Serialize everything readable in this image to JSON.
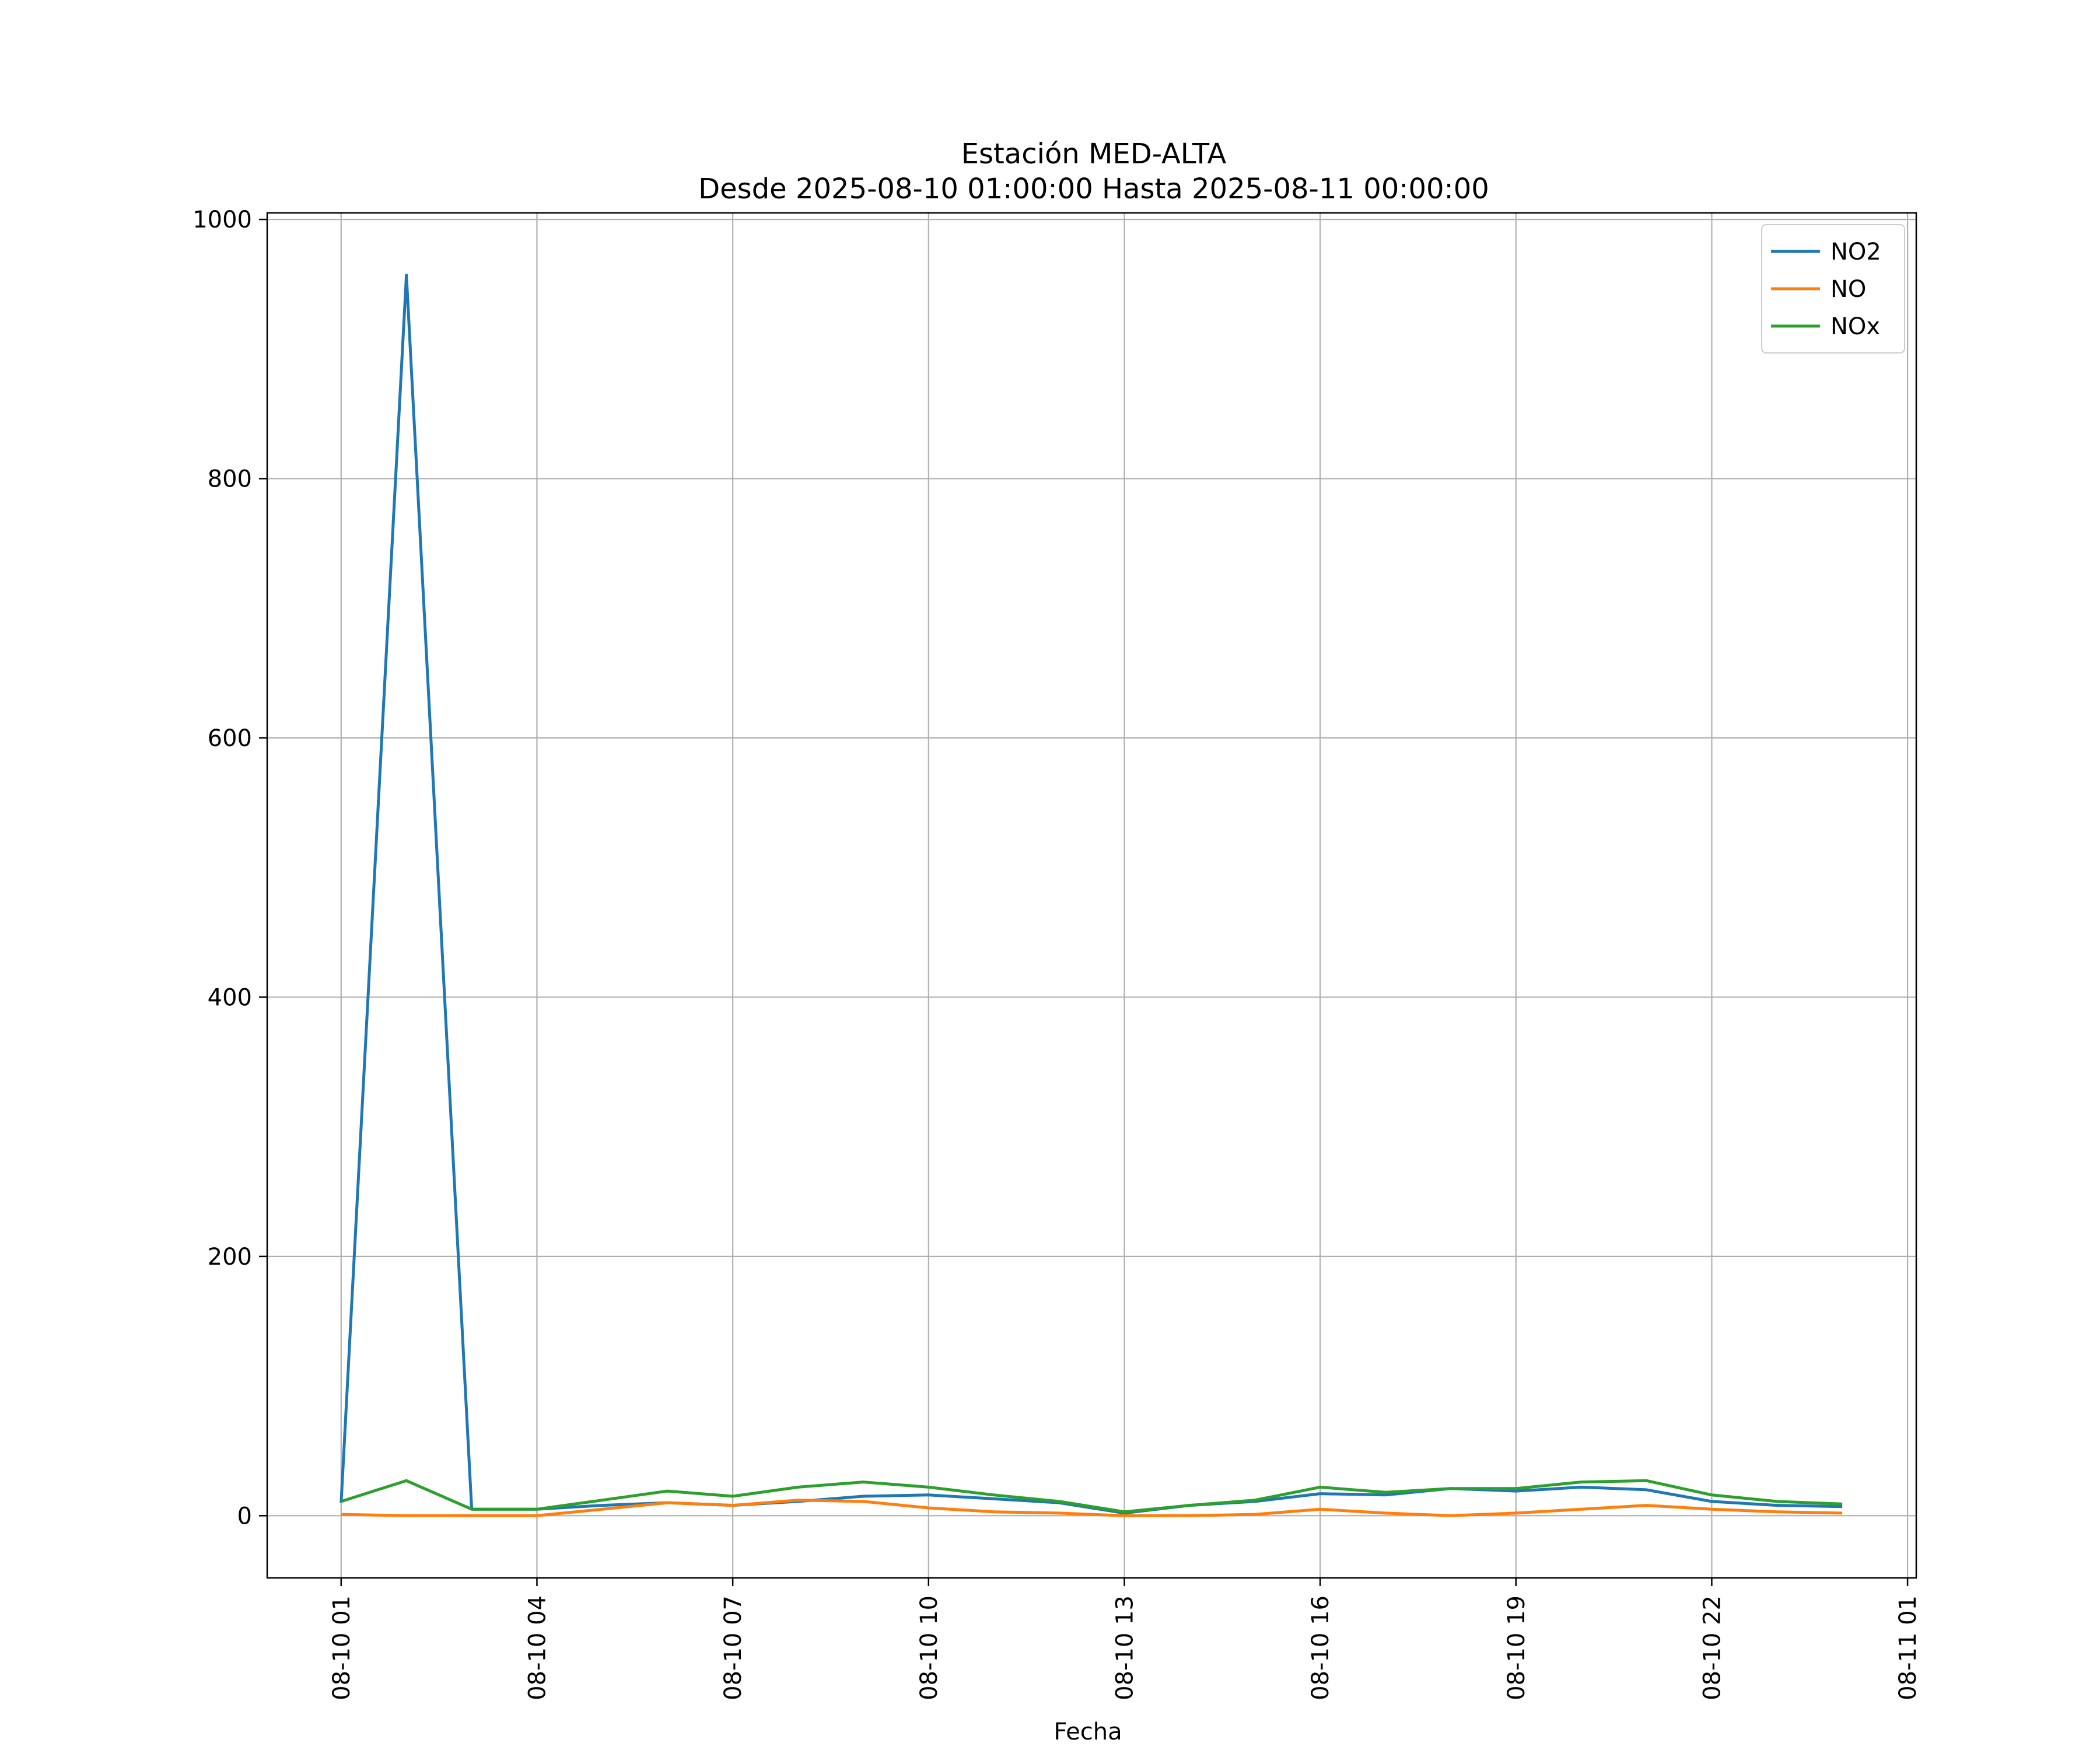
{
  "chart_data": {
    "type": "line",
    "title": "Estación MED-ALTA",
    "subtitle": "Desde 2025-08-10 01:00:00 Hasta 2025-08-11 00:00:00",
    "xlabel": "Fecha",
    "ylabel": "",
    "x_axis_type": "datetime",
    "xlim": [
      "2025-08-09 23:52",
      "2025-08-11 01:08"
    ],
    "ylim": [
      -48,
      1005
    ],
    "grid": true,
    "legend_position": "top-right",
    "x_tick_labels": [
      "08-10 01",
      "08-10 04",
      "08-10 07",
      "08-10 10",
      "08-10 13",
      "08-10 16",
      "08-10 19",
      "08-10 22",
      "08-11 01"
    ],
    "x_tick_values": [
      "2025-08-10 01:00",
      "2025-08-10 04:00",
      "2025-08-10 07:00",
      "2025-08-10 10:00",
      "2025-08-10 13:00",
      "2025-08-10 16:00",
      "2025-08-10 19:00",
      "2025-08-10 22:00",
      "2025-08-11 01:00"
    ],
    "y_ticks": [
      0,
      200,
      400,
      600,
      800,
      1000
    ],
    "x": [
      "2025-08-10 01:00",
      "2025-08-10 02:00",
      "2025-08-10 03:00",
      "2025-08-10 04:00",
      "2025-08-10 05:00",
      "2025-08-10 06:00",
      "2025-08-10 07:00",
      "2025-08-10 08:00",
      "2025-08-10 09:00",
      "2025-08-10 10:00",
      "2025-08-10 11:00",
      "2025-08-10 12:00",
      "2025-08-10 13:00",
      "2025-08-10 14:00",
      "2025-08-10 15:00",
      "2025-08-10 16:00",
      "2025-08-10 17:00",
      "2025-08-10 18:00",
      "2025-08-10 19:00",
      "2025-08-10 20:00",
      "2025-08-10 21:00",
      "2025-08-10 22:00",
      "2025-08-10 23:00",
      "2025-08-11 00:00"
    ],
    "series": [
      {
        "name": "NO2",
        "color": "#1f77b4",
        "values": [
          10,
          957,
          5,
          5,
          8,
          10,
          8,
          11,
          15,
          16,
          13,
          10,
          2,
          8,
          11,
          17,
          16,
          21,
          19,
          22,
          20,
          11,
          8,
          7
        ]
      },
      {
        "name": "NO",
        "color": "#ff7f0e",
        "values": [
          1,
          0,
          0,
          0,
          5,
          10,
          8,
          12,
          11,
          6,
          3,
          2,
          0,
          0,
          1,
          5,
          2,
          0,
          2,
          5,
          8,
          5,
          3,
          2
        ]
      },
      {
        "name": "NOx",
        "color": "#2ca02c",
        "values": [
          11,
          27,
          5,
          5,
          12,
          19,
          15,
          22,
          26,
          22,
          16,
          11,
          3,
          8,
          12,
          22,
          18,
          21,
          21,
          26,
          27,
          16,
          11,
          9
        ]
      }
    ]
  }
}
